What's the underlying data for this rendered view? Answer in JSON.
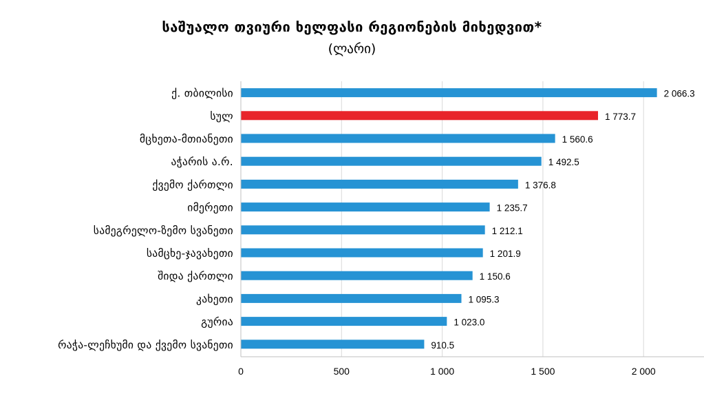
{
  "chart_data": {
    "type": "bar",
    "orientation": "horizontal",
    "title": "საშუალო თვიური ხელფასი რეგიონების მიხედვით*",
    "subtitle": "(ლარი)",
    "categories": [
      "ქ. თბილისი",
      "სულ",
      "მცხეთა-მთიანეთი",
      "აჭარის ა.რ.",
      "ქვემო ქართლი",
      "იმერეთი",
      "სამეგრელო-ზემო სვანეთი",
      "სამცხე-ჯავახეთი",
      "შიდა ქართლი",
      "კახეთი",
      "გურია",
      "რაჭა-ლეჩხუმი და ქვემო სვანეთი"
    ],
    "values": [
      2066.3,
      1773.7,
      1560.6,
      1492.5,
      1376.8,
      1235.7,
      1212.1,
      1201.9,
      1150.6,
      1095.3,
      1023.0,
      910.5
    ],
    "value_labels": [
      "2 066.3",
      "1 773.7",
      "1 560.6",
      "1 492.5",
      "1 376.8",
      "1 235.7",
      "1 212.1",
      "1 201.9",
      "1 150.6",
      "1 095.3",
      "1 023.0",
      "910.5"
    ],
    "highlight_index": 1,
    "colors": {
      "bar": "#2693d4",
      "highlight": "#e8242a",
      "grid": "#d9d9d9",
      "axis": "#bfbfbf"
    },
    "xlim": [
      0,
      2300
    ],
    "x_ticks": [
      0,
      500,
      1000,
      1500,
      2000
    ],
    "x_tick_labels": [
      "0",
      "500",
      "1 000",
      "1 500",
      "2 000"
    ],
    "grid": true,
    "legend": "none"
  }
}
